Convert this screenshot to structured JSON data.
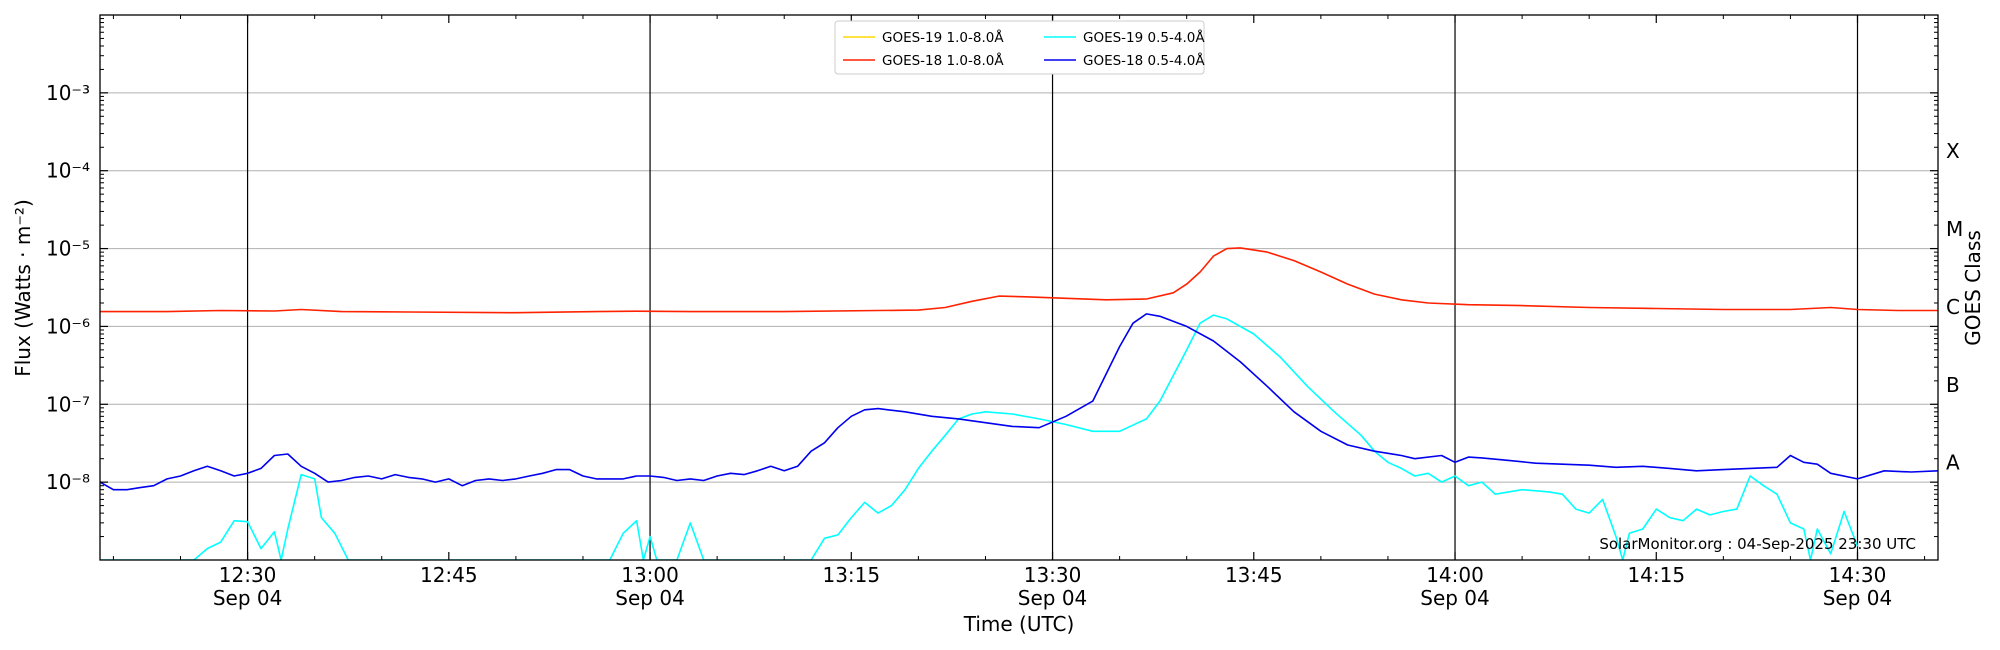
{
  "chart_data": {
    "type": "line",
    "ylabel": "Flux (Watts · m⁻²)",
    "xlabel": "Time (UTC)",
    "right_axis_label": "GOES Class",
    "y_scale": "log",
    "ylim": [
      1e-09,
      0.01
    ],
    "xlim": [
      "12:19",
      "14:36"
    ],
    "grid": "horizontal at decades, vertical at :00 and :30",
    "legend_position": "top-center",
    "credit": "SolarMonitor.org : 04-Sep-2025 23:30 UTC",
    "y_ticks": [
      {
        "value": 1e-08,
        "label": "10⁻⁸"
      },
      {
        "value": 1e-07,
        "label": "10⁻⁷"
      },
      {
        "value": 1e-06,
        "label": "10⁻⁶"
      },
      {
        "value": 1e-05,
        "label": "10⁻⁵"
      },
      {
        "value": 0.0001,
        "label": "10⁻⁴"
      },
      {
        "value": 0.001,
        "label": "10⁻³"
      }
    ],
    "x_ticks": [
      {
        "time": "12:30",
        "label": "12:30",
        "date": "Sep 04"
      },
      {
        "time": "12:45",
        "label": "12:45",
        "date": ""
      },
      {
        "time": "13:00",
        "label": "13:00",
        "date": "Sep 04"
      },
      {
        "time": "13:15",
        "label": "13:15",
        "date": ""
      },
      {
        "time": "13:30",
        "label": "13:30",
        "date": "Sep 04"
      },
      {
        "time": "13:45",
        "label": "13:45",
        "date": ""
      },
      {
        "time": "14:00",
        "label": "14:00",
        "date": "Sep 04"
      },
      {
        "time": "14:15",
        "label": "14:15",
        "date": ""
      },
      {
        "time": "14:30",
        "label": "14:30",
        "date": "Sep 04"
      }
    ],
    "class_labels": [
      {
        "label": "A",
        "value": 1.78e-08
      },
      {
        "label": "B",
        "value": 1.78e-07
      },
      {
        "label": "C",
        "value": 1.78e-06
      },
      {
        "label": "M",
        "value": 1.78e-05
      },
      {
        "label": "X",
        "value": 0.000178
      }
    ],
    "series": [
      {
        "name": "GOES-19 1.0-8.0Å",
        "color": "#ffd700",
        "points": []
      },
      {
        "name": "GOES-18 1.0-8.0Å",
        "color": "#ff2200",
        "points": [
          [
            "12:19",
            1.55e-06
          ],
          [
            "12:24",
            1.55e-06
          ],
          [
            "12:28",
            1.6e-06
          ],
          [
            "12:32",
            1.58e-06
          ],
          [
            "12:34",
            1.65e-06
          ],
          [
            "12:37",
            1.55e-06
          ],
          [
            "12:42",
            1.53e-06
          ],
          [
            "12:50",
            1.5e-06
          ],
          [
            "12:56",
            1.55e-06
          ],
          [
            "12:59",
            1.57e-06
          ],
          [
            "13:03",
            1.55e-06
          ],
          [
            "13:10",
            1.55e-06
          ],
          [
            "13:17",
            1.6e-06
          ],
          [
            "13:20",
            1.62e-06
          ],
          [
            "13:22",
            1.75e-06
          ],
          [
            "13:24",
            2.1e-06
          ],
          [
            "13:26",
            2.45e-06
          ],
          [
            "13:28",
            2.4e-06
          ],
          [
            "13:31",
            2.3e-06
          ],
          [
            "13:34",
            2.2e-06
          ],
          [
            "13:37",
            2.25e-06
          ],
          [
            "13:39",
            2.7e-06
          ],
          [
            "13:40",
            3.5e-06
          ],
          [
            "13:41",
            5e-06
          ],
          [
            "13:42",
            8e-06
          ],
          [
            "13:43",
            1e-05
          ],
          [
            "13:44",
            1.02e-05
          ],
          [
            "13:46",
            9e-06
          ],
          [
            "13:48",
            7e-06
          ],
          [
            "13:50",
            5e-06
          ],
          [
            "13:52",
            3.5e-06
          ],
          [
            "13:54",
            2.6e-06
          ],
          [
            "13:56",
            2.2e-06
          ],
          [
            "13:58",
            2e-06
          ],
          [
            "14:01",
            1.9e-06
          ],
          [
            "14:05",
            1.85e-06
          ],
          [
            "14:10",
            1.75e-06
          ],
          [
            "14:15",
            1.7e-06
          ],
          [
            "14:20",
            1.65e-06
          ],
          [
            "14:25",
            1.65e-06
          ],
          [
            "14:28",
            1.75e-06
          ],
          [
            "14:30",
            1.65e-06
          ],
          [
            "14:33",
            1.6e-06
          ],
          [
            "14:36",
            1.6e-06
          ]
        ]
      },
      {
        "name": "GOES-19 0.5-4.0Å",
        "color": "#00ffff",
        "points": [
          [
            "12:19",
            1e-09
          ],
          [
            "12:26",
            1e-09
          ],
          [
            "12:27",
            1.4e-09
          ],
          [
            "12:28",
            1.7e-09
          ],
          [
            "12:29",
            3.2e-09
          ],
          [
            "12:30",
            3.1e-09
          ],
          [
            "12:31",
            1.4e-09
          ],
          [
            "12:32",
            2.3e-09
          ],
          [
            "12:32.5",
            1e-09
          ],
          [
            "12:33",
            2.5e-09
          ],
          [
            "12:34",
            1.25e-08
          ],
          [
            "12:35",
            1.1e-08
          ],
          [
            "12:35.5",
            3.5e-09
          ],
          [
            "12:36.5",
            2.2e-09
          ],
          [
            "12:37.5",
            1e-09
          ],
          [
            "12:57",
            1e-09
          ],
          [
            "12:58",
            2.2e-09
          ],
          [
            "12:59",
            3.2e-09
          ],
          [
            "12:59.5",
            1e-09
          ],
          [
            "13:00",
            2e-09
          ],
          [
            "13:00.5",
            1e-09
          ],
          [
            "13:02",
            1e-09
          ],
          [
            "13:03",
            3e-09
          ],
          [
            "13:04",
            1e-09
          ],
          [
            "13:12",
            1e-09
          ],
          [
            "13:13",
            1.9e-09
          ],
          [
            "13:14",
            2.1e-09
          ],
          [
            "13:15",
            3.5e-09
          ],
          [
            "13:16",
            5.5e-09
          ],
          [
            "13:17",
            4e-09
          ],
          [
            "13:18",
            5e-09
          ],
          [
            "13:19",
            8e-09
          ],
          [
            "13:20",
            1.5e-08
          ],
          [
            "13:21",
            2.5e-08
          ],
          [
            "13:22",
            4e-08
          ],
          [
            "13:23",
            6.5e-08
          ],
          [
            "13:24",
            7.5e-08
          ],
          [
            "13:25",
            8e-08
          ],
          [
            "13:27",
            7.5e-08
          ],
          [
            "13:29",
            6.5e-08
          ],
          [
            "13:31",
            5.5e-08
          ],
          [
            "13:33",
            4.5e-08
          ],
          [
            "13:35",
            4.5e-08
          ],
          [
            "13:37",
            6.5e-08
          ],
          [
            "13:38",
            1.1e-07
          ],
          [
            "13:40",
            5e-07
          ],
          [
            "13:41",
            1.1e-06
          ],
          [
            "13:42",
            1.4e-06
          ],
          [
            "13:43",
            1.25e-06
          ],
          [
            "13:45",
            8e-07
          ],
          [
            "13:47",
            4e-07
          ],
          [
            "13:49",
            1.7e-07
          ],
          [
            "13:51",
            8e-08
          ],
          [
            "13:53",
            4e-08
          ],
          [
            "13:54",
            2.5e-08
          ],
          [
            "13:55",
            1.8e-08
          ],
          [
            "13:56",
            1.5e-08
          ],
          [
            "13:57",
            1.2e-08
          ],
          [
            "13:58",
            1.3e-08
          ],
          [
            "13:59",
            1e-08
          ],
          [
            "14:00",
            1.2e-08
          ],
          [
            "14:01",
            9e-09
          ],
          [
            "14:02",
            1e-08
          ],
          [
            "14:03",
            7e-09
          ],
          [
            "14:05",
            8e-09
          ],
          [
            "14:07",
            7.5e-09
          ],
          [
            "14:08",
            7e-09
          ],
          [
            "14:09",
            4.5e-09
          ],
          [
            "14:10",
            4e-09
          ],
          [
            "14:11",
            6e-09
          ],
          [
            "14:12",
            2e-09
          ],
          [
            "14:12.5",
            1e-09
          ],
          [
            "14:13",
            2.2e-09
          ],
          [
            "14:14",
            2.5e-09
          ],
          [
            "14:15",
            4.5e-09
          ],
          [
            "14:16",
            3.5e-09
          ],
          [
            "14:17",
            3.2e-09
          ],
          [
            "14:18",
            4.5e-09
          ],
          [
            "14:19",
            3.8e-09
          ],
          [
            "14:20",
            4.2e-09
          ],
          [
            "14:21",
            4.5e-09
          ],
          [
            "14:22",
            1.2e-08
          ],
          [
            "14:23",
            9e-09
          ],
          [
            "14:24",
            7e-09
          ],
          [
            "14:25",
            3e-09
          ],
          [
            "14:26",
            2.5e-09
          ],
          [
            "14:26.5",
            1e-09
          ],
          [
            "14:27",
            2.5e-09
          ],
          [
            "14:28",
            1.2e-09
          ],
          [
            "14:29",
            4.2e-09
          ],
          [
            "14:30",
            1.5e-09
          ]
        ]
      },
      {
        "name": "GOES-18 0.5-4.0Å",
        "color": "#0000ee",
        "points": [
          [
            "12:19",
            1e-08
          ],
          [
            "12:20",
            8e-09
          ],
          [
            "12:21",
            8e-09
          ],
          [
            "12:22",
            8.5e-09
          ],
          [
            "12:23",
            9e-09
          ],
          [
            "12:24",
            1.1e-08
          ],
          [
            "12:25",
            1.2e-08
          ],
          [
            "12:26",
            1.4e-08
          ],
          [
            "12:27",
            1.6e-08
          ],
          [
            "12:28",
            1.4e-08
          ],
          [
            "12:29",
            1.2e-08
          ],
          [
            "12:30",
            1.3e-08
          ],
          [
            "12:31",
            1.5e-08
          ],
          [
            "12:32",
            2.2e-08
          ],
          [
            "12:33",
            2.3e-08
          ],
          [
            "12:34",
            1.6e-08
          ],
          [
            "12:35",
            1.3e-08
          ],
          [
            "12:36",
            1e-08
          ],
          [
            "12:37",
            1.05e-08
          ],
          [
            "12:38",
            1.15e-08
          ],
          [
            "12:39",
            1.2e-08
          ],
          [
            "12:40",
            1.1e-08
          ],
          [
            "12:41",
            1.25e-08
          ],
          [
            "12:42",
            1.15e-08
          ],
          [
            "12:43",
            1.1e-08
          ],
          [
            "12:44",
            1e-08
          ],
          [
            "12:45",
            1.1e-08
          ],
          [
            "12:46",
            9e-09
          ],
          [
            "12:47",
            1.05e-08
          ],
          [
            "12:48",
            1.1e-08
          ],
          [
            "12:49",
            1.05e-08
          ],
          [
            "12:50",
            1.1e-08
          ],
          [
            "12:51",
            1.2e-08
          ],
          [
            "12:52",
            1.3e-08
          ],
          [
            "12:53",
            1.45e-08
          ],
          [
            "12:54",
            1.45e-08
          ],
          [
            "12:55",
            1.2e-08
          ],
          [
            "12:56",
            1.1e-08
          ],
          [
            "12:57",
            1.1e-08
          ],
          [
            "12:58",
            1.1e-08
          ],
          [
            "12:59",
            1.2e-08
          ],
          [
            "13:00",
            1.2e-08
          ],
          [
            "13:01",
            1.15e-08
          ],
          [
            "13:02",
            1.05e-08
          ],
          [
            "13:03",
            1.1e-08
          ],
          [
            "13:04",
            1.05e-08
          ],
          [
            "13:05",
            1.2e-08
          ],
          [
            "13:06",
            1.3e-08
          ],
          [
            "13:07",
            1.25e-08
          ],
          [
            "13:08",
            1.4e-08
          ],
          [
            "13:09",
            1.6e-08
          ],
          [
            "13:10",
            1.4e-08
          ],
          [
            "13:11",
            1.6e-08
          ],
          [
            "13:12",
            2.5e-08
          ],
          [
            "13:13",
            3.2e-08
          ],
          [
            "13:14",
            5e-08
          ],
          [
            "13:15",
            7e-08
          ],
          [
            "13:16",
            8.5e-08
          ],
          [
            "13:17",
            8.8e-08
          ],
          [
            "13:19",
            8e-08
          ],
          [
            "13:21",
            7e-08
          ],
          [
            "13:23",
            6.5e-08
          ],
          [
            "13:25",
            5.8e-08
          ],
          [
            "13:27",
            5.2e-08
          ],
          [
            "13:29",
            5e-08
          ],
          [
            "13:31",
            7e-08
          ],
          [
            "13:33",
            1.1e-07
          ],
          [
            "13:35",
            5.5e-07
          ],
          [
            "13:36",
            1.1e-06
          ],
          [
            "13:37",
            1.45e-06
          ],
          [
            "13:38",
            1.35e-06
          ],
          [
            "13:40",
            1e-06
          ],
          [
            "13:42",
            6.5e-07
          ],
          [
            "13:44",
            3.5e-07
          ],
          [
            "13:46",
            1.7e-07
          ],
          [
            "13:48",
            8e-08
          ],
          [
            "13:50",
            4.5e-08
          ],
          [
            "13:52",
            3e-08
          ],
          [
            "13:54",
            2.5e-08
          ],
          [
            "13:56",
            2.2e-08
          ],
          [
            "13:57",
            2e-08
          ],
          [
            "13:59",
            2.2e-08
          ],
          [
            "14:00",
            1.8e-08
          ],
          [
            "14:01",
            2.1e-08
          ],
          [
            "14:02",
            2.05e-08
          ],
          [
            "14:04",
            1.9e-08
          ],
          [
            "14:06",
            1.75e-08
          ],
          [
            "14:08",
            1.7e-08
          ],
          [
            "14:10",
            1.65e-08
          ],
          [
            "14:12",
            1.55e-08
          ],
          [
            "14:14",
            1.6e-08
          ],
          [
            "14:16",
            1.5e-08
          ],
          [
            "14:18",
            1.4e-08
          ],
          [
            "14:20",
            1.45e-08
          ],
          [
            "14:22",
            1.5e-08
          ],
          [
            "14:24",
            1.55e-08
          ],
          [
            "14:25",
            2.2e-08
          ],
          [
            "14:26",
            1.8e-08
          ],
          [
            "14:27",
            1.7e-08
          ],
          [
            "14:28",
            1.3e-08
          ],
          [
            "14:30",
            1.1e-08
          ],
          [
            "14:32",
            1.4e-08
          ],
          [
            "14:34",
            1.35e-08
          ],
          [
            "14:36",
            1.4e-08
          ]
        ]
      }
    ]
  }
}
